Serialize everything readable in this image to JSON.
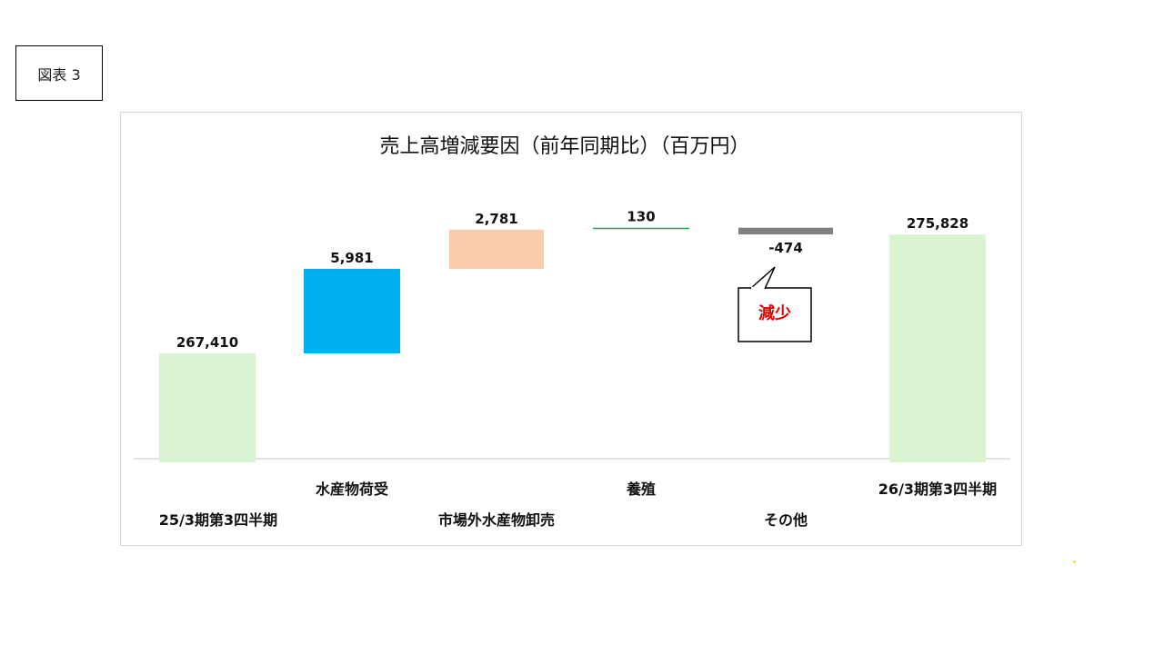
{
  "figure_label": "図表 3",
  "chart_data": {
    "type": "waterfall",
    "title": "売上高増減要因（前年同期比）（百万円）",
    "categories": [
      "25/3期第3四半期",
      "水産物荷受",
      "市場外水産物卸売",
      "養殖",
      "その他",
      "26/3期第3四半期"
    ],
    "values": [
      267410,
      5981,
      2781,
      130,
      -474,
      275828
    ],
    "value_labels": [
      "267,410",
      "5,981",
      "2,781",
      "130",
      "-474",
      "275,828"
    ],
    "kinds": [
      "total",
      "delta",
      "delta",
      "delta",
      "delta",
      "total"
    ],
    "colors": [
      "#d9f2d0",
      "#00b0f0",
      "#f8cbad",
      "#00b050",
      "#7f7f7f",
      "#d9f2d0"
    ],
    "callout": {
      "text": "減少",
      "color": "#e00000"
    },
    "grid": false,
    "legend": "none"
  }
}
